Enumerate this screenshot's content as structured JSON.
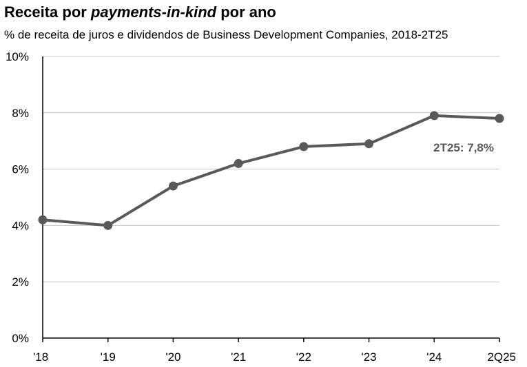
{
  "header": {
    "title_part1": "Receita por ",
    "title_italic": "payments-in-kind",
    "title_part2": " por ano",
    "subtitle": "% de receita de juros e dividendos de Business Development Companies, 2018-2T25"
  },
  "chart_data": {
    "type": "line",
    "title": "Receita por payments-in-kind por ano",
    "subtitle": "% de receita de juros e dividendos de Business Development Companies, 2018-2T25",
    "categories": [
      "'18",
      "'19",
      "'20",
      "'21",
      "'22",
      "'23",
      "'24",
      "2Q25"
    ],
    "series": [
      {
        "values": [
          4.2,
          4.0,
          5.4,
          6.2,
          6.8,
          6.9,
          7.9,
          7.8
        ],
        "color": "#595959"
      }
    ],
    "ylim": [
      0,
      10
    ],
    "yticks": [
      0,
      2,
      4,
      6,
      8,
      10
    ],
    "ytick_labels": [
      "0%",
      "2%",
      "4%",
      "6%",
      "8%",
      "10%"
    ],
    "grid": true,
    "annotations": [
      {
        "text": "2T25: 7,8%",
        "category": "2Q25"
      }
    ]
  }
}
